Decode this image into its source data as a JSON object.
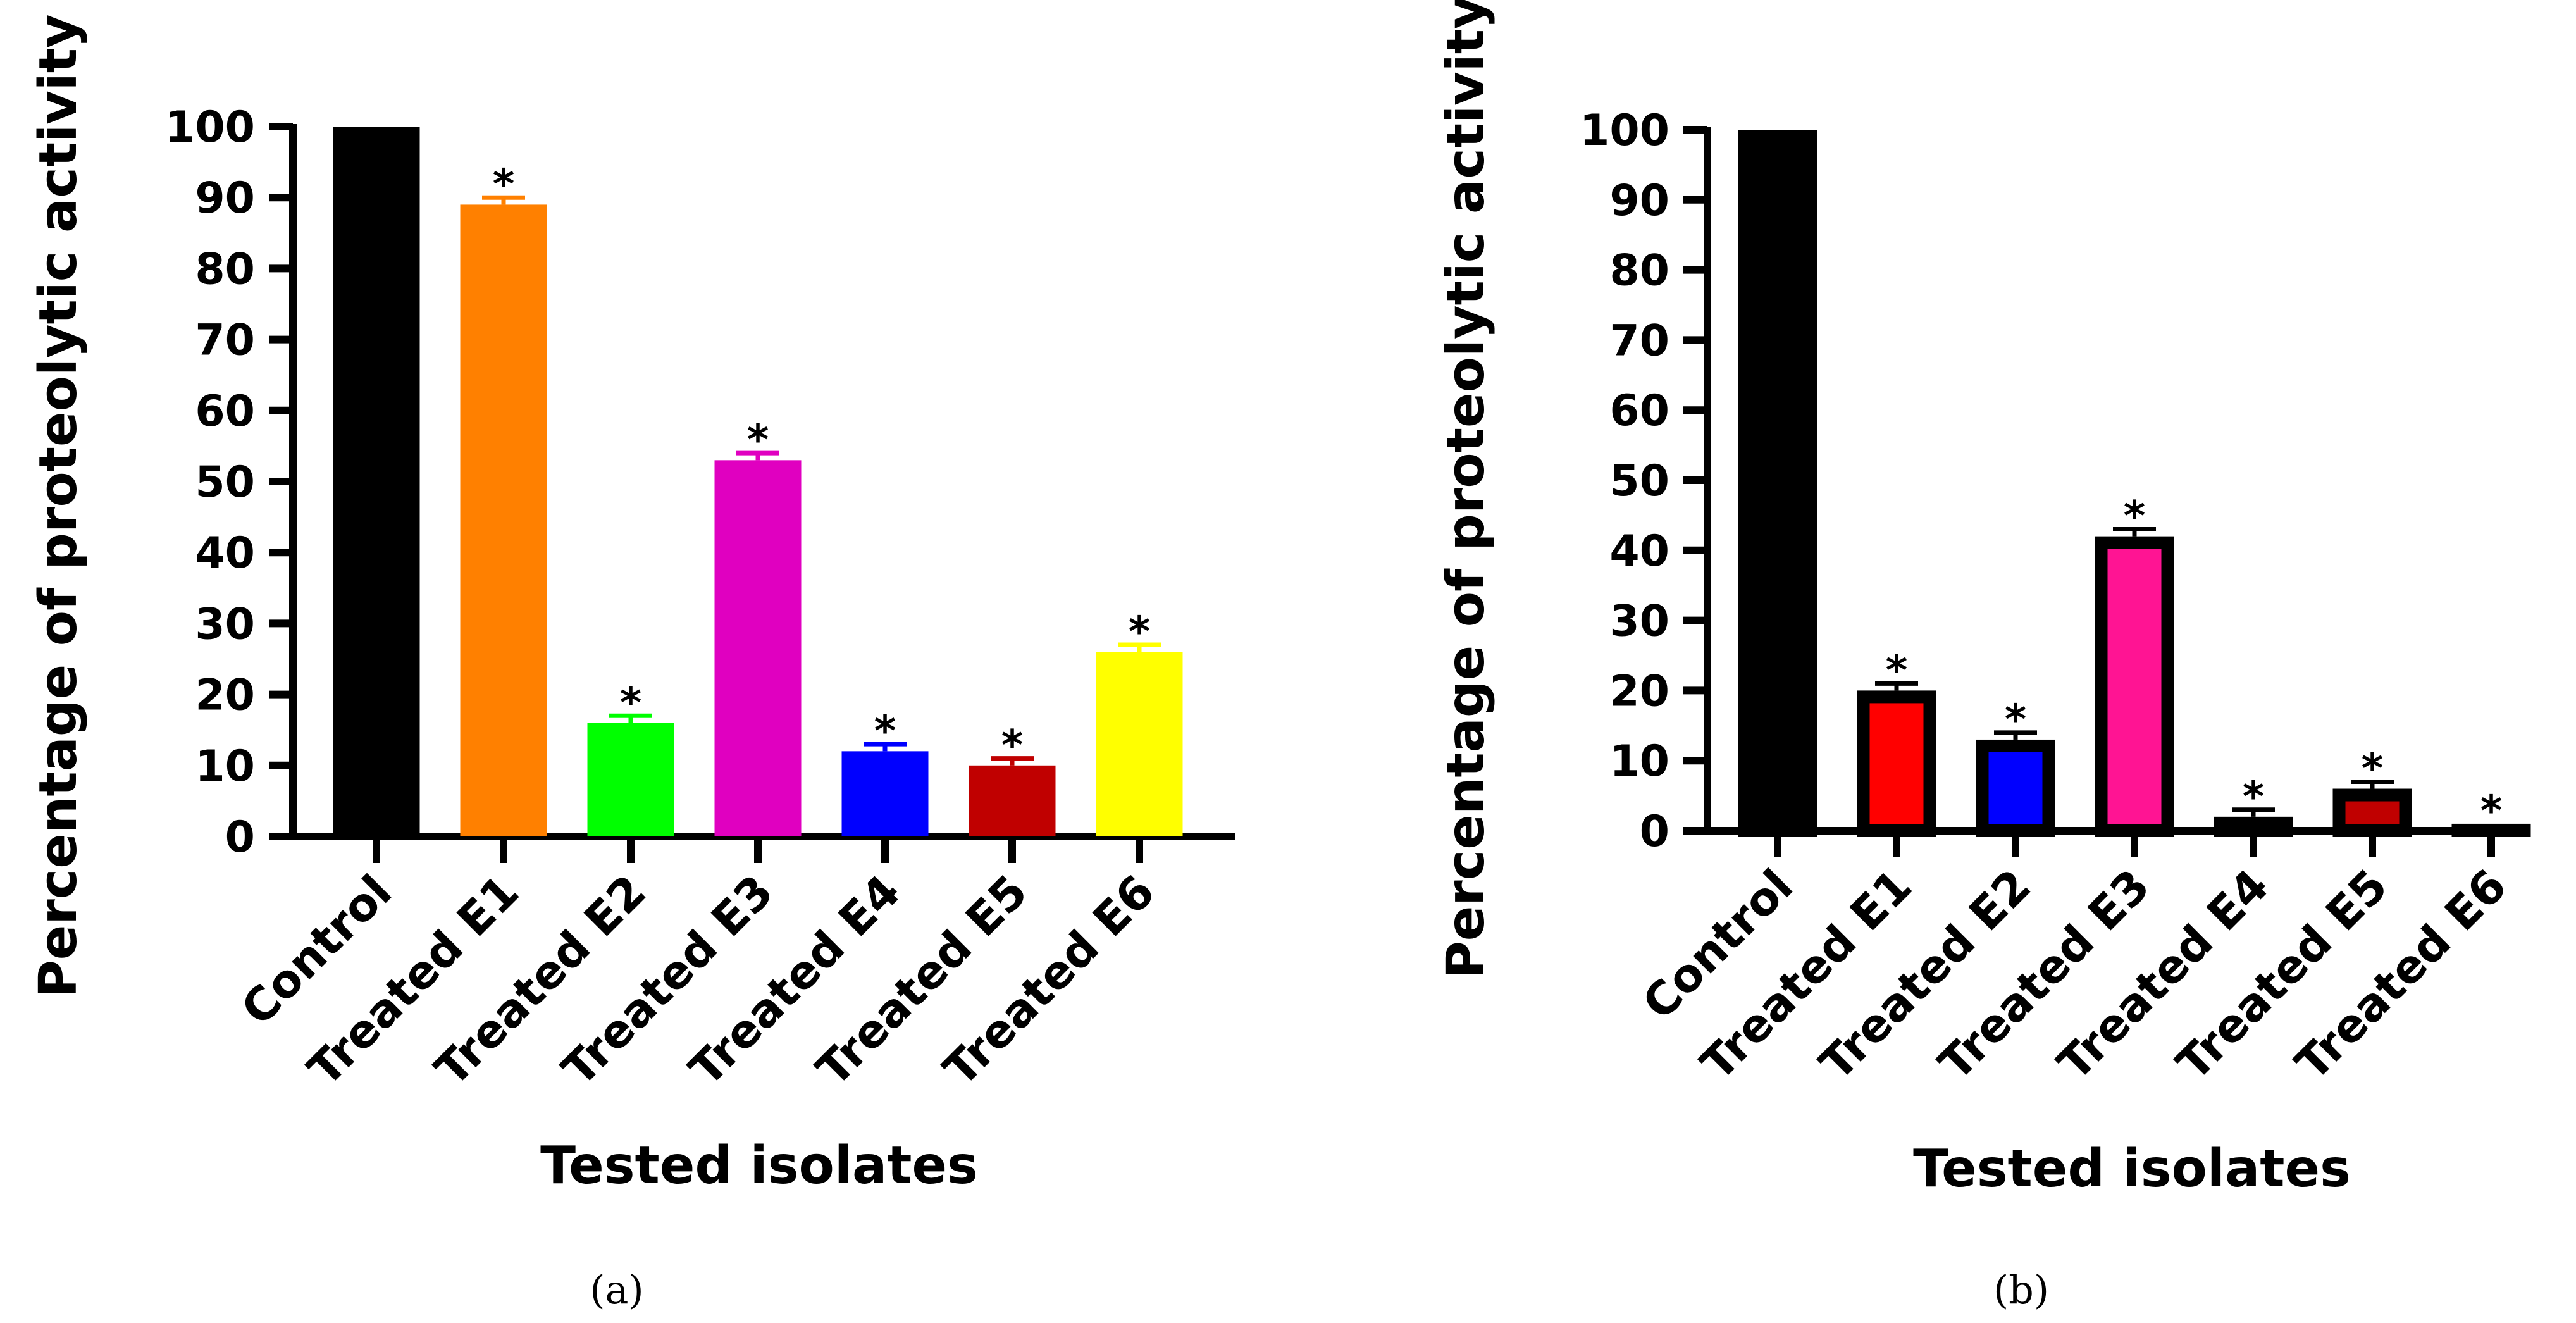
{
  "chart_data": [
    {
      "type": "bar",
      "panel_label": "(a)",
      "xlabel": "Tested isolates",
      "ylabel": "Percentage of proteolytic activity",
      "ylim": [
        0,
        100
      ],
      "yticks": [
        0,
        10,
        20,
        30,
        40,
        50,
        60,
        70,
        80,
        90,
        100
      ],
      "categories": [
        "Control",
        "Treated E1",
        "Treated E2",
        "Treated E3",
        "Treated E4",
        "Treated E5",
        "Treated E6"
      ],
      "values": [
        100,
        89,
        16,
        53,
        12,
        10,
        26
      ],
      "errors": [
        0,
        1,
        1,
        1,
        1,
        1,
        1
      ],
      "significance": [
        "",
        "*",
        "*",
        "*",
        "*",
        "*",
        "*"
      ],
      "colors": [
        "#000000",
        "#ff8000",
        "#00ff00",
        "#e000c0",
        "#0000ff",
        "#c00000",
        "#ffff00"
      ],
      "bar_outline": false
    },
    {
      "type": "bar",
      "panel_label": "(b)",
      "xlabel": "Tested isolates",
      "ylabel": "Percentage of proteolytic activity",
      "ylim": [
        0,
        100
      ],
      "yticks": [
        0,
        10,
        20,
        30,
        40,
        50,
        60,
        70,
        80,
        90,
        100
      ],
      "categories": [
        "Control",
        "Treated E1",
        "Treated E2",
        "Treated E3",
        "Treated E4",
        "Treated E5",
        "Treated E6"
      ],
      "values": [
        100,
        20,
        13,
        42,
        2,
        6,
        1
      ],
      "errors": [
        0,
        1,
        1,
        1,
        1,
        1,
        0
      ],
      "significance": [
        "",
        "*",
        "*",
        "*",
        "*",
        "*",
        "*"
      ],
      "colors": [
        "#000000",
        "#ff0000",
        "#0000ff",
        "#ff1493",
        "#000000",
        "#c00000",
        "#000000"
      ],
      "bar_outline": true
    }
  ]
}
